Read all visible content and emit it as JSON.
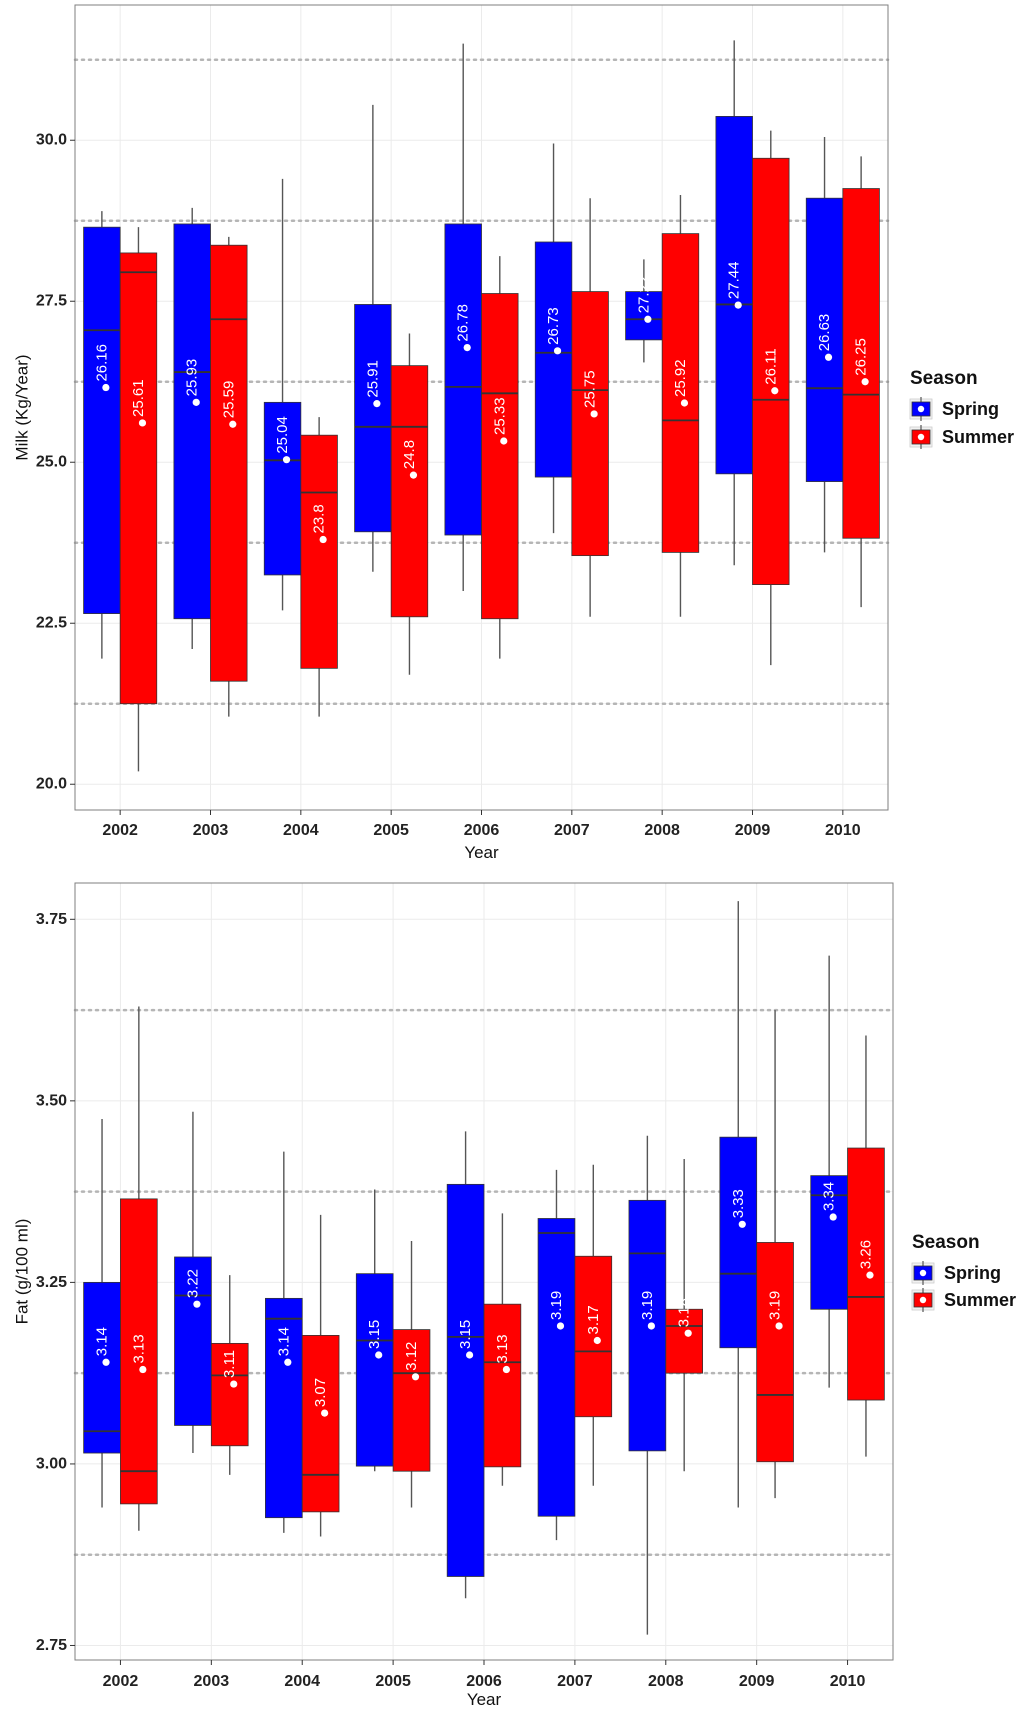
{
  "colors": {
    "spring": "#0000ff",
    "summer": "#ff0000",
    "grid": "#ebebeb",
    "reference_line": "#b5b5b5",
    "whisker": "#555555",
    "panel_border": "#7f7f7f"
  },
  "chart_data": [
    {
      "type": "boxplot",
      "xlabel": "Year",
      "ylabel": "Milk (Kg/Year)",
      "ylim": [
        19.6,
        32.1
      ],
      "yticks": [
        "20.0",
        "22.5",
        "25.0",
        "27.5",
        "30.0"
      ],
      "grid": true,
      "reference_lines": [
        21.25,
        23.75,
        26.25,
        28.75,
        31.25
      ],
      "legend": {
        "title": "Season",
        "position": "right",
        "entries": [
          "Spring",
          "Summer"
        ]
      },
      "categories": [
        "2002",
        "2003",
        "2004",
        "2005",
        "2006",
        "2007",
        "2008",
        "2009",
        "2010"
      ],
      "series": [
        {
          "name": "Spring",
          "boxes": [
            {
              "min": 21.95,
              "q1": 22.65,
              "median": 27.05,
              "q3": 28.65,
              "max": 28.9,
              "mean": 26.16,
              "label": "26.16"
            },
            {
              "min": 22.1,
              "q1": 22.57,
              "median": 26.4,
              "q3": 28.7,
              "max": 28.95,
              "mean": 25.93,
              "label": "25.93"
            },
            {
              "min": 22.7,
              "q1": 23.25,
              "median": 25.03,
              "q3": 25.93,
              "max": 29.4,
              "mean": 25.04,
              "label": "25.04"
            },
            {
              "min": 23.3,
              "q1": 23.92,
              "median": 25.55,
              "q3": 27.45,
              "max": 30.55,
              "mean": 25.91,
              "label": "25.91"
            },
            {
              "min": 23.0,
              "q1": 23.87,
              "median": 26.17,
              "q3": 28.7,
              "max": 31.5,
              "mean": 26.78,
              "label": "26.78"
            },
            {
              "min": 23.9,
              "q1": 24.77,
              "median": 26.7,
              "q3": 28.42,
              "max": 29.95,
              "mean": 26.73,
              "label": "26.73"
            },
            {
              "min": 26.55,
              "q1": 26.9,
              "median": 27.22,
              "q3": 27.65,
              "max": 28.15,
              "mean": 27.22,
              "label": "27.22"
            },
            {
              "min": 23.4,
              "q1": 24.82,
              "median": 27.45,
              "q3": 30.37,
              "max": 31.55,
              "mean": 27.44,
              "label": "27.44"
            },
            {
              "min": 23.6,
              "q1": 24.7,
              "median": 26.15,
              "q3": 29.1,
              "max": 30.05,
              "mean": 26.63,
              "label": "26.63"
            }
          ]
        },
        {
          "name": "Summer",
          "boxes": [
            {
              "min": 20.2,
              "q1": 21.25,
              "median": 27.95,
              "q3": 28.25,
              "max": 28.65,
              "mean": 25.61,
              "label": "25.61"
            },
            {
              "min": 21.05,
              "q1": 21.6,
              "median": 27.22,
              "q3": 28.37,
              "max": 28.5,
              "mean": 25.59,
              "label": "25.59"
            },
            {
              "min": 21.05,
              "q1": 21.8,
              "median": 24.53,
              "q3": 25.42,
              "max": 25.7,
              "mean": 23.8,
              "label": "23.8"
            },
            {
              "min": 21.7,
              "q1": 22.6,
              "median": 25.55,
              "q3": 26.5,
              "max": 27.0,
              "mean": 24.8,
              "label": "24.8"
            },
            {
              "min": 21.95,
              "q1": 22.57,
              "median": 26.07,
              "q3": 27.62,
              "max": 28.2,
              "mean": 25.33,
              "label": "25.33"
            },
            {
              "min": 22.6,
              "q1": 23.55,
              "median": 26.12,
              "q3": 27.65,
              "max": 29.1,
              "mean": 25.75,
              "label": "25.75"
            },
            {
              "min": 22.6,
              "q1": 23.6,
              "median": 25.65,
              "q3": 28.55,
              "max": 29.15,
              "mean": 25.92,
              "label": "25.92"
            },
            {
              "min": 21.85,
              "q1": 23.1,
              "median": 25.97,
              "q3": 29.72,
              "max": 30.15,
              "mean": 26.11,
              "label": "26.11"
            },
            {
              "min": 22.75,
              "q1": 23.82,
              "median": 26.05,
              "q3": 29.25,
              "max": 29.75,
              "mean": 26.25,
              "label": "26.25"
            }
          ]
        }
      ]
    },
    {
      "type": "boxplot",
      "xlabel": "Year",
      "ylabel": "Fat (g/100 ml)",
      "ylim": [
        2.73,
        3.8
      ],
      "yticks": [
        "2.75",
        "3.00",
        "3.25",
        "3.50",
        "3.75"
      ],
      "grid": true,
      "reference_lines": [
        2.875,
        3.125,
        3.375,
        3.625
      ],
      "legend": {
        "title": "Season",
        "position": "right",
        "entries": [
          "Spring",
          "Summer"
        ]
      },
      "categories": [
        "2002",
        "2003",
        "2004",
        "2005",
        "2006",
        "2007",
        "2008",
        "2009",
        "2010"
      ],
      "series": [
        {
          "name": "Spring",
          "boxes": [
            {
              "min": 2.94,
              "q1": 3.015,
              "median": 3.045,
              "q3": 3.25,
              "max": 3.475,
              "mean": 3.14,
              "label": "3.14"
            },
            {
              "min": 3.015,
              "q1": 3.053,
              "median": 3.232,
              "q3": 3.285,
              "max": 3.485,
              "mean": 3.22,
              "label": "3.22"
            },
            {
              "min": 2.905,
              "q1": 2.926,
              "median": 3.2,
              "q3": 3.228,
              "max": 3.43,
              "mean": 3.14,
              "label": "3.14"
            },
            {
              "min": 2.99,
              "q1": 2.997,
              "median": 3.17,
              "q3": 3.262,
              "max": 3.378,
              "mean": 3.15,
              "label": "3.15"
            },
            {
              "min": 2.815,
              "q1": 2.845,
              "median": 3.175,
              "q3": 3.385,
              "max": 3.458,
              "mean": 3.15,
              "label": "3.15"
            },
            {
              "min": 2.895,
              "q1": 2.928,
              "median": 3.318,
              "q3": 3.338,
              "max": 3.405,
              "mean": 3.19,
              "label": "3.19"
            },
            {
              "min": 2.765,
              "q1": 3.018,
              "median": 3.29,
              "q3": 3.363,
              "max": 3.452,
              "mean": 3.19,
              "label": "3.19"
            },
            {
              "min": 2.94,
              "q1": 3.16,
              "median": 3.262,
              "q3": 3.45,
              "max": 3.775,
              "mean": 3.33,
              "label": "3.33"
            },
            {
              "min": 3.105,
              "q1": 3.213,
              "median": 3.37,
              "q3": 3.397,
              "max": 3.7,
              "mean": 3.34,
              "label": "3.34"
            }
          ]
        },
        {
          "name": "Summer",
          "boxes": [
            {
              "min": 2.908,
              "q1": 2.945,
              "median": 2.99,
              "q3": 3.365,
              "max": 3.63,
              "mean": 3.13,
              "label": "3.13"
            },
            {
              "min": 2.985,
              "q1": 3.025,
              "median": 3.122,
              "q3": 3.166,
              "max": 3.26,
              "mean": 3.11,
              "label": "3.11"
            },
            {
              "min": 2.9,
              "q1": 2.934,
              "median": 2.985,
              "q3": 3.177,
              "max": 3.343,
              "mean": 3.07,
              "label": "3.07"
            },
            {
              "min": 2.94,
              "q1": 2.99,
              "median": 3.125,
              "q3": 3.185,
              "max": 3.307,
              "mean": 3.12,
              "label": "3.12"
            },
            {
              "min": 2.97,
              "q1": 2.996,
              "median": 3.14,
              "q3": 3.22,
              "max": 3.345,
              "mean": 3.13,
              "label": "3.13"
            },
            {
              "min": 2.97,
              "q1": 3.065,
              "median": 3.155,
              "q3": 3.286,
              "max": 3.412,
              "mean": 3.17,
              "label": "3.17"
            },
            {
              "min": 2.99,
              "q1": 3.125,
              "median": 3.19,
              "q3": 3.213,
              "max": 3.42,
              "mean": 3.18,
              "label": "3.18"
            },
            {
              "min": 2.953,
              "q1": 3.003,
              "median": 3.095,
              "q3": 3.305,
              "max": 3.625,
              "mean": 3.19,
              "label": "3.19"
            },
            {
              "min": 3.01,
              "q1": 3.088,
              "median": 3.23,
              "q3": 3.435,
              "max": 3.59,
              "mean": 3.26,
              "label": "3.26"
            }
          ]
        }
      ]
    }
  ]
}
